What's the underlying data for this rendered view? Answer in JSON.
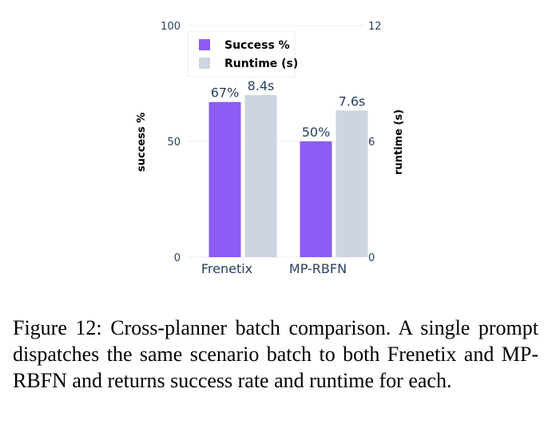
{
  "chart_data": {
    "type": "bar",
    "categories": [
      "Frenetix",
      "MP-RBFN"
    ],
    "series": [
      {
        "name": "Success %",
        "axis": "left",
        "values": [
          67,
          50
        ],
        "labels": [
          "67%",
          "50%"
        ],
        "color": "#8c5cf5"
      },
      {
        "name": "Runtime (s)",
        "axis": "right",
        "values": [
          8.4,
          7.6
        ],
        "labels": [
          "8.4s",
          "7.6s"
        ],
        "color": "#cdd5e1"
      }
    ],
    "ylabel": "success %",
    "y2label": "runtime (s)",
    "ylim": [
      0,
      100
    ],
    "y2lim": [
      0,
      12
    ],
    "yticks": [
      "0",
      "50",
      "100"
    ],
    "y2ticks": [
      "0",
      "6",
      "12"
    ],
    "grid": true,
    "legend_position": "top-left"
  },
  "caption": "Figure 12: Cross-planner batch comparison. A single prompt dispatches the same scenario batch to both Frenetix and MP-RBFN and returns success rate and runtime for each."
}
